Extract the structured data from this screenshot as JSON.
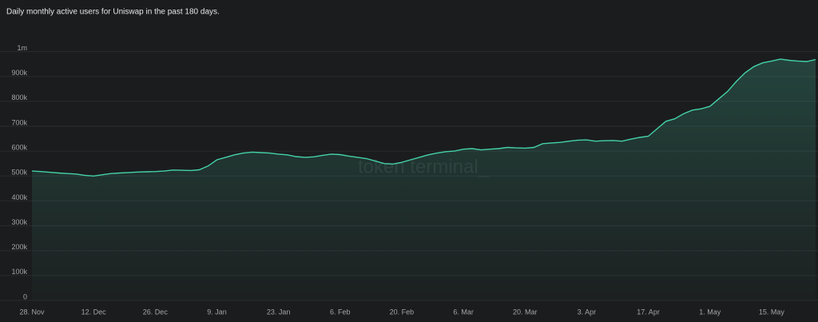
{
  "chart_data": {
    "type": "area",
    "title": "Daily monthly active users for Uniswap in the past 180 days.",
    "watermark": "token terminal_",
    "color": "#44d1a8",
    "categories": [
      "28. Nov",
      null,
      null,
      null,
      null,
      null,
      null,
      "12. Dec",
      null,
      null,
      null,
      null,
      null,
      null,
      "26. Dec",
      null,
      null,
      null,
      null,
      null,
      null,
      "9. Jan",
      null,
      null,
      null,
      null,
      null,
      null,
      "23. Jan",
      null,
      null,
      null,
      null,
      null,
      null,
      "6. Feb",
      null,
      null,
      null,
      null,
      null,
      null,
      "20. Feb",
      null,
      null,
      null,
      null,
      null,
      null,
      "6. Mar",
      null,
      null,
      null,
      null,
      null,
      null,
      "20. Mar",
      null,
      null,
      null,
      null,
      null,
      null,
      "3. Apr",
      null,
      null,
      null,
      null,
      null,
      null,
      "17. Apr",
      null,
      null,
      null,
      null,
      null,
      null,
      "1. May",
      null,
      null,
      null,
      null,
      null,
      null,
      "15. May",
      null,
      null,
      null,
      null,
      null
    ],
    "values": [
      520000,
      518000,
      515000,
      512000,
      510000,
      508000,
      503000,
      500000,
      505000,
      510000,
      512000,
      514000,
      516000,
      517000,
      518000,
      520000,
      524000,
      523000,
      522000,
      525000,
      540000,
      565000,
      575000,
      585000,
      592000,
      596000,
      594000,
      592000,
      588000,
      585000,
      578000,
      575000,
      577000,
      583000,
      588000,
      586000,
      580000,
      575000,
      570000,
      560000,
      550000,
      548000,
      555000,
      565000,
      575000,
      585000,
      592000,
      598000,
      600000,
      608000,
      610000,
      605000,
      608000,
      610000,
      615000,
      613000,
      612000,
      615000,
      630000,
      633000,
      635000,
      640000,
      644000,
      645000,
      640000,
      642000,
      643000,
      640000,
      648000,
      655000,
      660000,
      690000,
      720000,
      730000,
      750000,
      765000,
      770000,
      780000,
      810000,
      840000,
      880000,
      915000,
      940000,
      955000,
      962000,
      970000,
      965000,
      962000,
      960000,
      968000
    ],
    "ylim": [
      0,
      1050000
    ],
    "yticks": [
      0,
      {
        "value": 100000,
        "label": "100k"
      },
      {
        "value": 200000,
        "label": "200k"
      },
      {
        "value": 300000,
        "label": "300k"
      },
      {
        "value": 400000,
        "label": "400k"
      },
      {
        "value": 500000,
        "label": "500k"
      },
      {
        "value": 600000,
        "label": "600k"
      },
      {
        "value": 700000,
        "label": "700k"
      },
      {
        "value": 800000,
        "label": "800k"
      },
      {
        "value": 900000,
        "label": "900k"
      },
      {
        "value": 1000000,
        "label": "1m"
      }
    ],
    "grid": true
  }
}
